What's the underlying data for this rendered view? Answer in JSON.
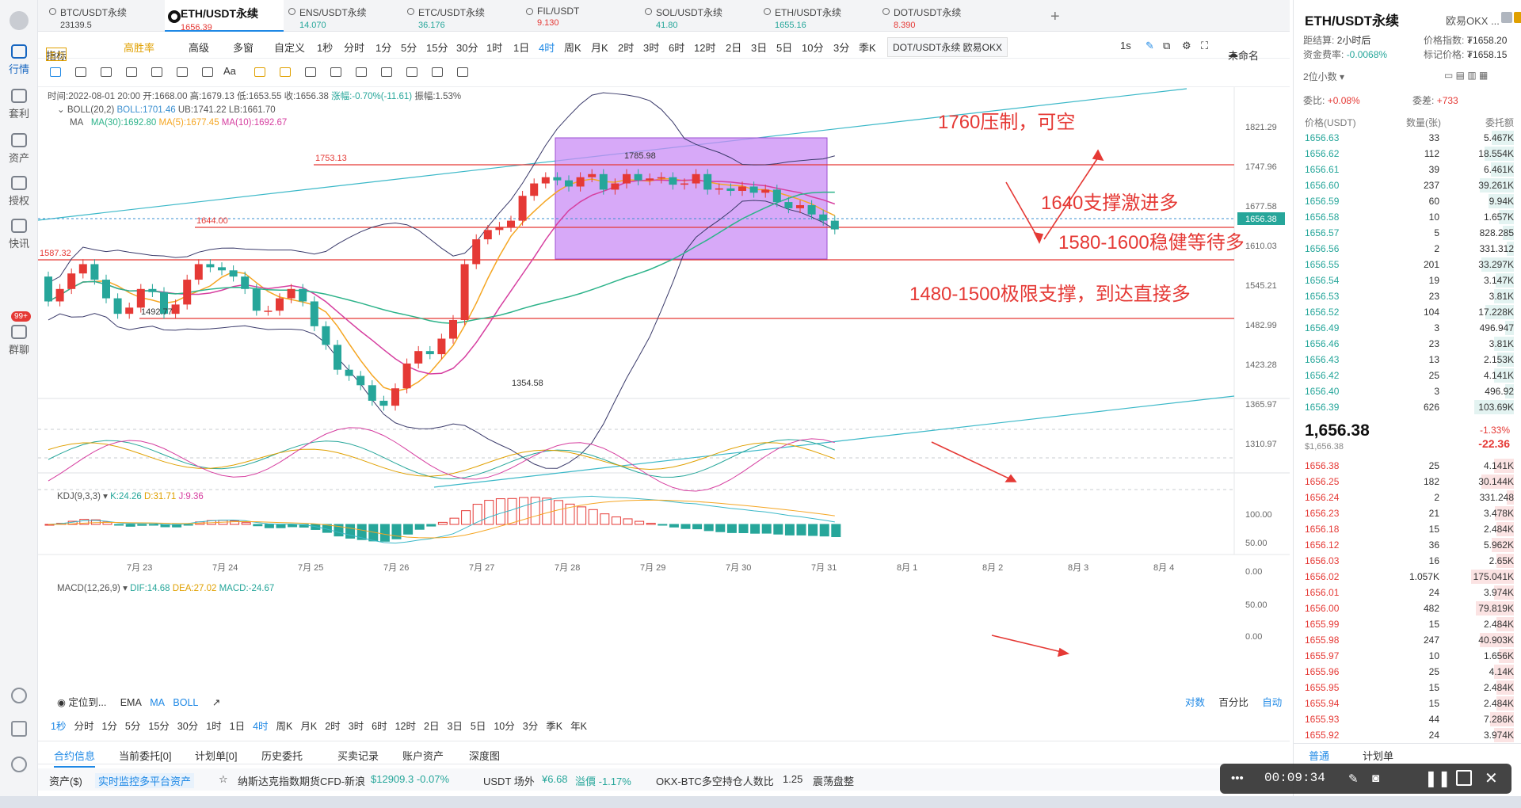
{
  "nav": {
    "items": [
      {
        "label": "行情",
        "icon": "market-icon"
      },
      {
        "label": "套利",
        "icon": "arbitrage-icon"
      },
      {
        "label": "资产",
        "icon": "asset-icon"
      },
      {
        "label": "授权",
        "icon": "auth-icon"
      },
      {
        "label": "快讯",
        "icon": "news-icon"
      },
      {
        "label": "群聊",
        "icon": "chat-icon"
      }
    ],
    "chat_badge": "99+"
  },
  "tabs": [
    {
      "label": "BTC/USDT永续",
      "price": "23139.5",
      "color": "#333333"
    },
    {
      "label": "ETH/USDT永续",
      "price": "1656.39",
      "color": "#e53935"
    },
    {
      "label": "ENS/USDT永续",
      "price": "14.070",
      "color": "#26a69a"
    },
    {
      "label": "ETC/USDT永续",
      "price": "36.176",
      "color": "#26a69a"
    },
    {
      "label": "FIL/USDT",
      "price": "9.130",
      "color": "#e53935"
    },
    {
      "label": "SOL/USDT永续",
      "price": "41.80",
      "color": "#26a69a"
    },
    {
      "label": "ETH/USDT永续",
      "price": "1655.16",
      "color": "#26a69a"
    },
    {
      "label": "DOT/USDT永续",
      "price": "8.390",
      "color": "#e53935"
    }
  ],
  "toolbar1": {
    "indicator": "指标",
    "indicator_badge": "主力",
    "win_rate": "高胜率",
    "advanced": "高级",
    "multi": "多窗",
    "custom": "自定义",
    "intervals": [
      "1秒",
      "分时",
      "1分",
      "5分",
      "15分",
      "30分",
      "1时",
      "1日",
      "4时",
      "周K",
      "月K",
      "2时",
      "3时",
      "6时",
      "12时",
      "2日",
      "3日",
      "5日",
      "10分",
      "3分",
      "季K"
    ],
    "active_interval": "4时",
    "symbol_popup": "DOT/USDT永续 欧易OKX",
    "right_interval": "1s",
    "layout_name": "未命名"
  },
  "ohlc": {
    "time_label": "时间:2022-08-01 20:00",
    "open": "开:1668.00",
    "high": "高:1679.13",
    "low": "低:1653.55",
    "close": "收:1656.38",
    "change": "涨幅:-0.70%(-11.61)",
    "amplitude": "振幅:1.53%"
  },
  "indicators": {
    "boll_label": "BOLL(20,2)",
    "boll": "BOLL:1701.46",
    "ub": "UB:1741.22",
    "lb": "LB:1661.70",
    "ma_label": "MA",
    "ma30": "MA(30):1692.80",
    "ma5": "MA(5):1677.45",
    "ma10": "MA(10):1692.67",
    "kdj_label": "KDJ(9,3,3)",
    "k": "K:24.26",
    "d": "D:31.71",
    "j": "J:9.36",
    "macd_label": "MACD(12,26,9)",
    "dif": "DIF:14.68",
    "dea": "DEA:27.02",
    "macd": "MACD:-24.67"
  },
  "colors": {
    "up": "#e53935",
    "down": "#26a69a",
    "ma5": "#f5a623",
    "ma10": "#d63fa0",
    "ma30": "#2db38a",
    "boll": "#3a3a6a",
    "annotation": "#e53935",
    "accent": "#1e88e5",
    "box": "#c98cf5"
  },
  "annotations": [
    "1760压制，可空",
    "1640支撑激进多",
    "1580-1600稳健等待多",
    "1480-1500极限支撑，到达直接多"
  ],
  "level_labels": [
    "1753.13",
    "1644.00",
    "1587.32",
    "1492.77",
    "1785.98",
    "1354.58"
  ],
  "price_axis": [
    "1821.29",
    "1747.96",
    "1677.58",
    "1656.38",
    "1610.03",
    "1545.21",
    "1482.99",
    "1423.28",
    "1365.97",
    "1310.97"
  ],
  "kdj_axis": [
    "100.00",
    "50.00",
    "0.00"
  ],
  "macd_axis": [
    "50.00",
    "0.00"
  ],
  "date_axis": [
    "7月 23",
    "7月 24",
    "7月 25",
    "7月 26",
    "7月 27",
    "7月 28",
    "7月 29",
    "7月 30",
    "7月 31",
    "8月 1",
    "8月 2",
    "8月 3",
    "8月 4"
  ],
  "chart_bottom": {
    "locate": "定位到...",
    "ema": "EMA",
    "ma": "MA",
    "boll": "BOLL",
    "intervals": [
      "1秒",
      "分时",
      "1分",
      "5分",
      "15分",
      "30分",
      "1时",
      "1日",
      "4时",
      "周K",
      "月K",
      "2时",
      "3时",
      "6时",
      "12时",
      "2日",
      "3日",
      "5日",
      "10分",
      "3分",
      "季K",
      "年K"
    ],
    "log": "对数",
    "percent": "百分比",
    "auto": "自动"
  },
  "bottom_tabs": [
    "合约信息",
    "当前委托[0]",
    "计划单[0]",
    "历史委托",
    "买卖记录",
    "账户资产",
    "深度图"
  ],
  "status": {
    "asset": "资产($)",
    "monitor": "实时监控多平台资产",
    "nasdaq": "纳斯达克指数期货CFD-新浪",
    "nasdaq_val": "$12909.3 -0.07%",
    "usdt": "USDT 场外",
    "usdt_val": "¥6.68",
    "premium": "溢價 -1.17%",
    "ratio": "OKX-BTC多空持仓人数比",
    "ratio_val": "1.25",
    "ratio_text": "震荡盘整"
  },
  "recorder": {
    "time": "00:09:34"
  },
  "right": {
    "title": "ETH/USDT永续",
    "exchange": "欧易OKX ...",
    "settle_label": "距结算:",
    "settle": "2小时后",
    "price_index_label": "价格指数:",
    "price_index": "₮1658.20",
    "funding_label": "资金费率:",
    "funding": "-0.0068%",
    "mark_label": "标记价格:",
    "mark": "₮1658.15",
    "decimals": "2位小数",
    "ratio_label": "委比:",
    "ratio": "+0.08%",
    "diff_label": "委差:",
    "diff": "+733",
    "col_price": "价格(USDT)",
    "col_qty": "数量(张)",
    "col_amt": "委托额",
    "asks": [
      [
        "1656.63",
        "33",
        "5.467K"
      ],
      [
        "1656.62",
        "112",
        "18.554K"
      ],
      [
        "1656.61",
        "39",
        "6.461K"
      ],
      [
        "1656.60",
        "237",
        "39.261K"
      ],
      [
        "1656.59",
        "60",
        "9.94K"
      ],
      [
        "1656.58",
        "10",
        "1.657K"
      ],
      [
        "1656.57",
        "5",
        "828.285"
      ],
      [
        "1656.56",
        "2",
        "331.312"
      ],
      [
        "1656.55",
        "201",
        "33.297K"
      ],
      [
        "1656.54",
        "19",
        "3.147K"
      ],
      [
        "1656.53",
        "23",
        "3.81K"
      ],
      [
        "1656.52",
        "104",
        "17.228K"
      ],
      [
        "1656.49",
        "3",
        "496.947"
      ],
      [
        "1656.46",
        "23",
        "3.81K"
      ],
      [
        "1656.43",
        "13",
        "2.153K"
      ],
      [
        "1656.42",
        "25",
        "4.141K"
      ],
      [
        "1656.40",
        "3",
        "496.92"
      ],
      [
        "1656.39",
        "626",
        "103.69K"
      ]
    ],
    "last": "1,656.38",
    "last_sub": "$1,656.38",
    "last_pct": "-1.33%",
    "last_chg": "-22.36",
    "bids": [
      [
        "1656.38",
        "25",
        "4.141K"
      ],
      [
        "1656.25",
        "182",
        "30.144K"
      ],
      [
        "1656.24",
        "2",
        "331.248"
      ],
      [
        "1656.23",
        "21",
        "3.478K"
      ],
      [
        "1656.18",
        "15",
        "2.484K"
      ],
      [
        "1656.12",
        "36",
        "5.962K"
      ],
      [
        "1656.03",
        "16",
        "2.65K"
      ],
      [
        "1656.02",
        "1.057K",
        "175.041K"
      ],
      [
        "1656.01",
        "24",
        "3.974K"
      ],
      [
        "1656.00",
        "482",
        "79.819K"
      ],
      [
        "1655.99",
        "15",
        "2.484K"
      ],
      [
        "1655.98",
        "247",
        "40.903K"
      ],
      [
        "1655.97",
        "10",
        "1.656K"
      ],
      [
        "1655.96",
        "25",
        "4.14K"
      ],
      [
        "1655.95",
        "15",
        "2.484K"
      ],
      [
        "1655.94",
        "15",
        "2.484K"
      ],
      [
        "1655.93",
        "44",
        "7.286K"
      ],
      [
        "1655.92",
        "24",
        "3.974K"
      ]
    ],
    "tabs": [
      "普通",
      "计划单"
    ]
  }
}
